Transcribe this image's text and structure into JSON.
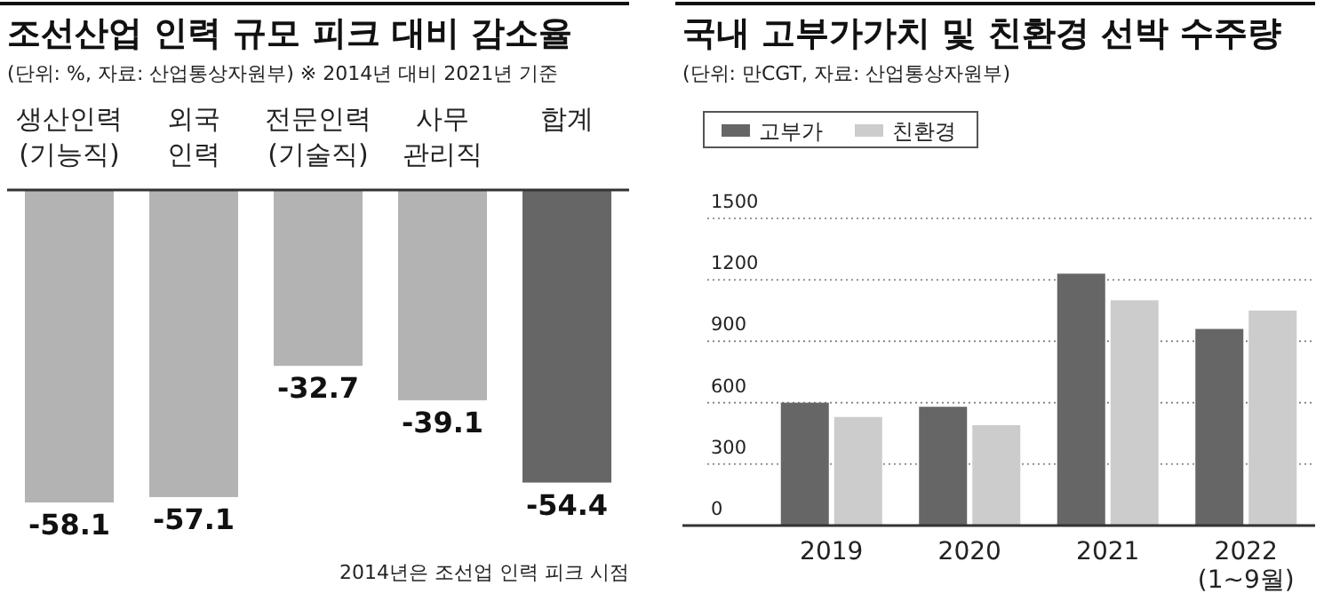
{
  "chart_data": [
    {
      "type": "bar",
      "title": "조선산업 인력 규모 피크 대비 감소율",
      "subtitle": "(단위: %, 자료: 산업통상자원부) ※ 2014년 대비 2021년 기준",
      "categories": [
        "생산인력\n(기능직)",
        "외국\n인력",
        "전문인력\n(기술직)",
        "사무\n관리직",
        "합계"
      ],
      "values": [
        -58.1,
        -57.1,
        -32.7,
        -39.1,
        -54.4
      ],
      "colors": [
        "#b3b3b3",
        "#b3b3b3",
        "#b3b3b3",
        "#b3b3b3",
        "#666666"
      ],
      "data_labels": true,
      "annotations": [
        "2014년은 조선업 인력 피크 시점"
      ]
    },
    {
      "type": "bar",
      "title": "국내 고부가가치 및 친환경 선박 수주량",
      "subtitle": "(단위: 만CGT, 자료: 산업통상자원부)",
      "categories": [
        "2019",
        "2020",
        "2021",
        "2022\n(1~9월)"
      ],
      "series": [
        {
          "name": "고부가",
          "color": "#666666",
          "values": [
            600,
            580,
            1230,
            960
          ]
        },
        {
          "name": "친환경",
          "color": "#cccccc",
          "values": [
            530,
            490,
            1100,
            1050
          ]
        }
      ],
      "ylim": [
        0,
        1500
      ],
      "yticks": [
        0,
        300,
        600,
        900,
        1200,
        1500
      ],
      "grid": "y",
      "legend": "top left"
    }
  ]
}
